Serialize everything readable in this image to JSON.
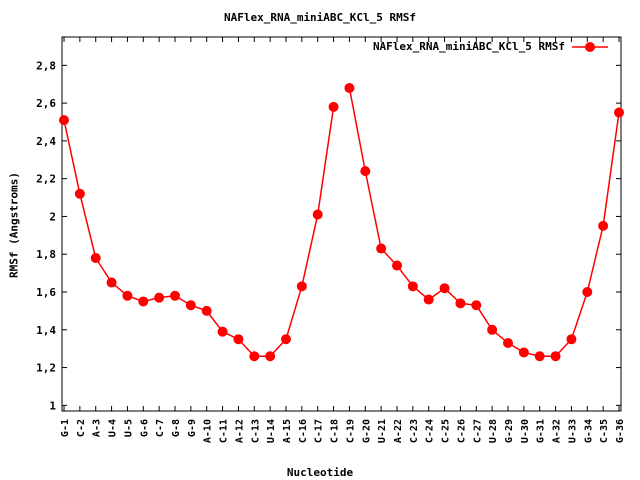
{
  "chart_data": {
    "type": "line",
    "title": "NAFlex_RNA_miniABC_KCl_5 RMSf",
    "xlabel": "Nucleotide",
    "ylabel": "RMSf (Angstroms)",
    "ylim": [
      0.97,
      2.95
    ],
    "yticks": [
      "1",
      "1,2",
      "1,4",
      "1,6",
      "1,8",
      "2",
      "2,2",
      "2,4",
      "2,6",
      "2,8"
    ],
    "grid": false,
    "legend_position": "top-right",
    "color": "#ff0000",
    "categories": [
      "G-1",
      "C-2",
      "A-3",
      "U-4",
      "U-5",
      "G-6",
      "C-7",
      "G-8",
      "G-9",
      "A-10",
      "C-11",
      "A-12",
      "C-13",
      "U-14",
      "A-15",
      "C-16",
      "C-17",
      "C-18",
      "C-19",
      "G-20",
      "U-21",
      "A-22",
      "C-23",
      "C-24",
      "C-25",
      "C-26",
      "C-27",
      "U-28",
      "G-29",
      "U-30",
      "G-31",
      "A-32",
      "U-33",
      "G-34",
      "C-35",
      "G-36"
    ],
    "series": [
      {
        "name": "NAFlex_RNA_miniABC_KCl_5 RMSf",
        "segments": [
          [
            2.51,
            2.12,
            1.78,
            1.65,
            1.58,
            1.55,
            1.57,
            1.58,
            1.53,
            1.5,
            1.39,
            1.35,
            1.26,
            1.26,
            1.35,
            1.63,
            2.01,
            2.58
          ],
          [
            2.68,
            2.24,
            1.83,
            1.74,
            1.63,
            1.56,
            1.62,
            1.54,
            1.53,
            1.4,
            1.33,
            1.28,
            1.26,
            1.26,
            1.35,
            1.6,
            1.95,
            2.55
          ]
        ]
      }
    ]
  }
}
